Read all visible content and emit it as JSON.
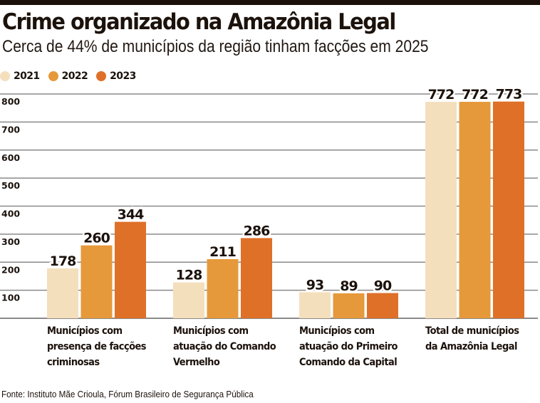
{
  "header": {
    "title": "Crime organizado na Amazônia Legal",
    "subtitle": "Cerca de 44% de municípios da região tinham facções em 2025"
  },
  "legend": [
    {
      "label": "2021",
      "color": "#f4dfbd"
    },
    {
      "label": "2022",
      "color": "#e6993a"
    },
    {
      "label": "2023",
      "color": "#df7028"
    }
  ],
  "source": "Fonte: Instituto Mãe Crioula, Fórum Brasileiro de Segurança Pública",
  "chart_data": {
    "type": "bar",
    "title": "Crime organizado na Amazônia Legal",
    "subtitle": "Cerca de 44% de municípios da região tinham facções em 2025",
    "xlabel": "",
    "ylabel": "",
    "ylim": [
      0,
      800
    ],
    "yticks": [
      100,
      200,
      300,
      400,
      500,
      600,
      700,
      800
    ],
    "grid": true,
    "legend_position": "top-left",
    "categories": [
      "Municípios com\npresença de facções\ncriminosas",
      "Municípios com\natuação do Comando\nVermelho",
      "Municípios com\natuação do Primeiro\nComando da Capital",
      "Total de municípios\nda Amazônia Legal"
    ],
    "series": [
      {
        "name": "2021",
        "color": "#f4dfbd",
        "values": [
          178,
          128,
          93,
          772
        ]
      },
      {
        "name": "2022",
        "color": "#e6993a",
        "values": [
          260,
          211,
          89,
          772
        ]
      },
      {
        "name": "2023",
        "color": "#df7028",
        "values": [
          344,
          286,
          90,
          773
        ]
      }
    ],
    "source": "Fonte: Instituto Mãe Crioula, Fórum Brasileiro de Segurança Pública"
  }
}
